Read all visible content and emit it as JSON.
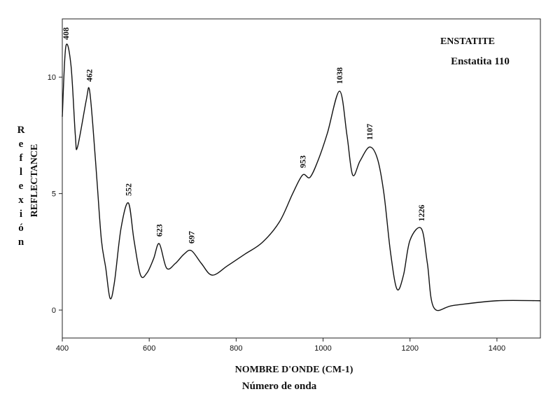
{
  "chart_data": {
    "type": "line",
    "title": "ENSTATITE",
    "subtitle": "Enstatita 110",
    "xlabel": "NOMBRE D'ONDE (CM-1)",
    "xlabel2": "Número de onda",
    "ylabel": "REFLECTANCE",
    "ylabel2": "Reflexión",
    "x": [
      400,
      408,
      420,
      430,
      435,
      455,
      462,
      470,
      480,
      490,
      500,
      510,
      520,
      535,
      552,
      565,
      580,
      595,
      610,
      623,
      640,
      660,
      680,
      697,
      720,
      745,
      780,
      820,
      860,
      900,
      930,
      953,
      970,
      990,
      1010,
      1038,
      1055,
      1068,
      1085,
      1107,
      1125,
      1140,
      1155,
      1170,
      1185,
      1200,
      1226,
      1240,
      1255,
      1300,
      1400,
      1500
    ],
    "y": [
      8.3,
      11.3,
      10.5,
      7.5,
      7.0,
      9.0,
      9.5,
      8.0,
      5.5,
      3.0,
      1.8,
      0.5,
      1.2,
      3.5,
      4.6,
      3.0,
      1.5,
      1.6,
      2.2,
      2.85,
      1.8,
      2.0,
      2.4,
      2.55,
      2.0,
      1.5,
      1.9,
      2.4,
      2.9,
      3.8,
      5.0,
      5.8,
      5.7,
      6.5,
      7.6,
      9.4,
      7.5,
      5.8,
      6.4,
      7.0,
      6.5,
      5.0,
      2.5,
      0.9,
      1.5,
      3.0,
      3.5,
      2.0,
      0.1,
      0.2,
      0.4,
      0.4
    ],
    "peaks": [
      408,
      462,
      552,
      623,
      697,
      953,
      1038,
      1107,
      1226
    ],
    "color": "#111111",
    "xlim": [
      400,
      1500
    ],
    "ylim": [
      -1.2,
      12.5
    ],
    "xticks": [
      400,
      600,
      800,
      1000,
      1200,
      1400
    ],
    "yticks": [
      0,
      5,
      10
    ],
    "grid": false
  }
}
